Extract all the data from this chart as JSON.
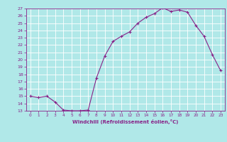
{
  "xlabel": "Windchill (Refroidissement éolien,°C)",
  "x_values": [
    0,
    1,
    2,
    3,
    4,
    5,
    6,
    7,
    8,
    9,
    10,
    11,
    12,
    13,
    14,
    15,
    16,
    17,
    18,
    19,
    20,
    21,
    22,
    23
  ],
  "y_values": [
    15.0,
    14.8,
    15.0,
    14.2,
    13.1,
    13.0,
    13.0,
    13.1,
    17.5,
    20.5,
    22.5,
    23.2,
    23.8,
    25.0,
    25.8,
    26.3,
    27.1,
    26.6,
    26.8,
    26.5,
    24.7,
    23.2,
    20.7,
    18.5
  ],
  "line_color": "#882288",
  "marker": "+",
  "bg_color": "#b0e8e8",
  "grid_color": "#ffffff",
  "tick_label_color": "#882288",
  "xlabel_color": "#882288",
  "ylim": [
    13,
    27
  ],
  "xlim": [
    -0.5,
    23.5
  ],
  "yticks": [
    13,
    14,
    15,
    16,
    17,
    18,
    19,
    20,
    21,
    22,
    23,
    24,
    25,
    26,
    27
  ],
  "xticks": [
    0,
    1,
    2,
    3,
    4,
    5,
    6,
    7,
    8,
    9,
    10,
    11,
    12,
    13,
    14,
    15,
    16,
    17,
    18,
    19,
    20,
    21,
    22,
    23
  ]
}
